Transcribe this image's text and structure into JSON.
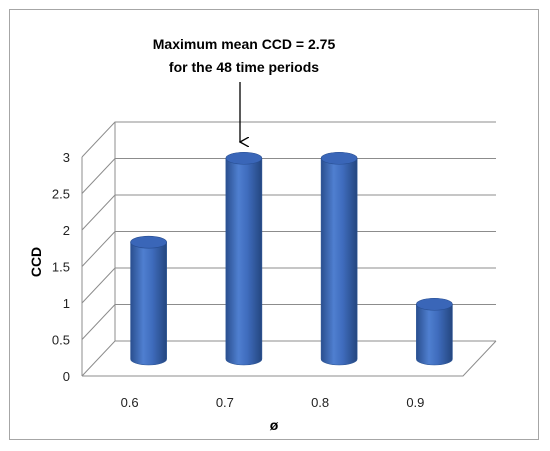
{
  "chart_data": {
    "type": "bar",
    "style": "3d-cylinder",
    "categories": [
      "0.6",
      "0.7",
      "0.8",
      "0.9"
    ],
    "values": [
      1.6,
      2.75,
      2.75,
      0.75
    ],
    "xlabel": "ø",
    "ylabel": "CCD",
    "ylim": [
      0,
      3
    ],
    "yticks": [
      "0",
      "0.5",
      "1",
      "1.5",
      "2",
      "2.5",
      "3"
    ],
    "grid": true,
    "legend": "none",
    "bar_color": "#4472c4",
    "annotation": {
      "lines": [
        "Maximum mean CCD = 2.75",
        "for the 48 time periods"
      ],
      "points_to": "0.7"
    }
  }
}
